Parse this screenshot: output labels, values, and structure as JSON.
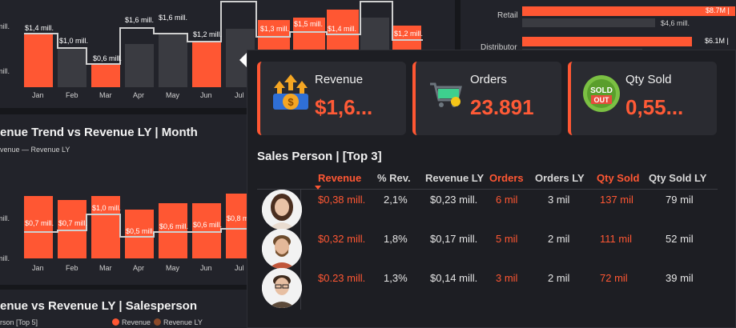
{
  "colors": {
    "accent": "#ff5733",
    "bar_ly": "#3a3b41",
    "panel": "#22232a",
    "tooltip": "#1d1e23"
  },
  "background": {
    "chart1": {
      "months": [
        "Jan",
        "Feb",
        "Mar",
        "Apr",
        "May",
        "Jun",
        "Jul"
      ],
      "revenue": [
        1.4,
        null,
        0.6,
        null,
        null,
        1.2,
        null
      ],
      "bar_labels": [
        "$1,4 mill.",
        "$1,0 mill.",
        "$0,6 mill.",
        "$1,6 mill.",
        "$1,6 mill.",
        "$1,2 mill."
      ],
      "right_labels": [
        "$1,3 mill.",
        "$1,5 mill.",
        "$1,4 mill.",
        "$1,2 mill."
      ]
    },
    "chart2_title": "enue Trend vs Revenue LY | Month",
    "chart2_legend": "venue — Revenue LY",
    "chart2": {
      "months": [
        "Jan",
        "Feb",
        "Mar",
        "Apr",
        "May",
        "Jun",
        "Jul"
      ],
      "bar_labels": [
        "$0,7 mill.",
        "$0,7 mill.",
        "$1,0 mill.",
        "$0,5 mill.",
        "$0,6 mill.",
        "$0,6 mill.",
        "$0,8 m"
      ]
    },
    "chart3_title": "enue vs Revenue LY | Salesperson",
    "chart3_sub": "rson [Top 5]",
    "chart3_legend": [
      "Revenue",
      "Revenue LY"
    ],
    "right_top": {
      "rows": [
        {
          "label": "Retail",
          "value": "$8.7M |",
          "ly": "$4,6 mill."
        },
        {
          "label": "Distributor",
          "value": "$6.1M |"
        }
      ]
    },
    "edge_texts": [
      "mill.",
      "mill.",
      "mill.",
      "mill.",
      "mill."
    ]
  },
  "tooltip": {
    "kpis": [
      {
        "label": "Revenue",
        "value": "$1,6...",
        "icon": "revenue-arrows-icon"
      },
      {
        "label": "Orders",
        "value": "23.891",
        "icon": "shopping-cart-icon"
      },
      {
        "label": "Qty Sold",
        "value": "0,55...",
        "icon": "sold-out-badge-icon",
        "badge": [
          "SOLD",
          "OUT"
        ]
      }
    ],
    "table_title": "Sales Person | [Top 3]",
    "columns": [
      "Revenue",
      "% Rev.",
      "Revenue LY",
      "Orders",
      "Orders LY",
      "Qty Sold",
      "Qty Sold LY"
    ],
    "rows": [
      {
        "revenue": "$0,38 mill.",
        "pct": "2,1%",
        "revenue_ly": "$0,23 mill.",
        "orders": "6 mil",
        "orders_ly": "3 mil",
        "qty": "137 mil",
        "qty_ly": "79 mil"
      },
      {
        "revenue": "$0,32 mill.",
        "pct": "1,8%",
        "revenue_ly": "$0,17 mill.",
        "orders": "5 mil",
        "orders_ly": "2 mil",
        "qty": "111 mil",
        "qty_ly": "52 mil"
      },
      {
        "revenue": "$0.23 mill.",
        "pct": "1,3%",
        "revenue_ly": "$0,14 mill.",
        "orders": "3 mil",
        "orders_ly": "2 mil",
        "qty": "72 mil",
        "qty_ly": "39 mil"
      }
    ]
  }
}
